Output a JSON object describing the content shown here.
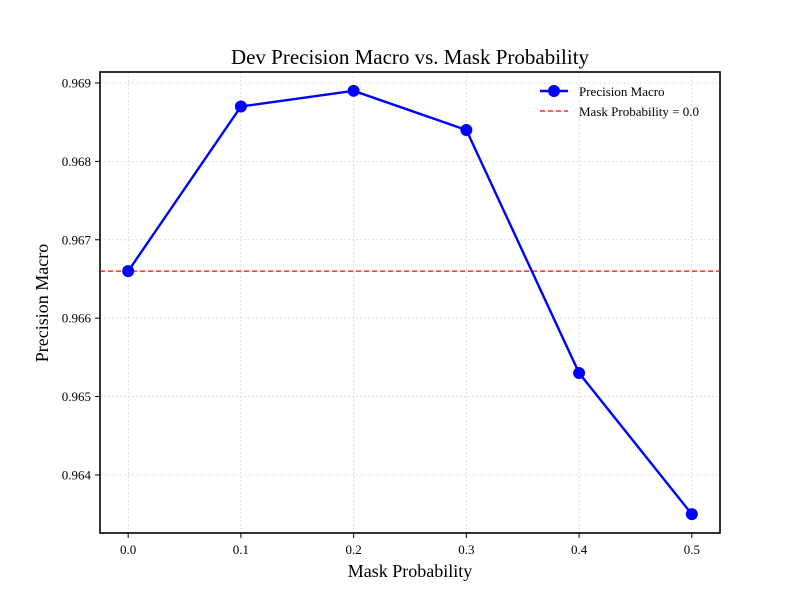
{
  "chart_data": {
    "type": "line",
    "title": "Dev Precision Macro vs. Mask Probability",
    "xlabel": "Mask Probability",
    "ylabel": "Precision Macro",
    "x": [
      0.0,
      0.1,
      0.2,
      0.3,
      0.4,
      0.5
    ],
    "xticks": [
      "0.0",
      "0.1",
      "0.2",
      "0.3",
      "0.4",
      "0.5"
    ],
    "yticks": [
      "0.964",
      "0.965",
      "0.966",
      "0.967",
      "0.968",
      "0.969"
    ],
    "xlim": [
      -0.025,
      0.525
    ],
    "ylim": [
      0.96326,
      0.96914
    ],
    "series": [
      {
        "name": "Precision Macro",
        "color": "#0000ff",
        "marker": "circle",
        "values": [
          0.9666,
          0.9687,
          0.9689,
          0.9684,
          0.9653,
          0.9635
        ]
      }
    ],
    "reference_line": {
      "label": "Mask Probability = 0.0",
      "value": 0.9666,
      "color": "#ff0000",
      "style": "dashed"
    },
    "grid": true,
    "legend_position": "top-right"
  }
}
